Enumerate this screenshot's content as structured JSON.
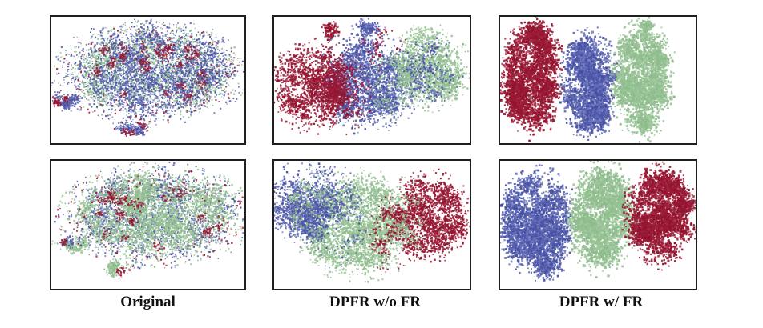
{
  "figure": {
    "type": "t-SNE class-separation comparison, 2 rows x 3 columns",
    "columns": [
      {
        "label": "Original"
      },
      {
        "label": "DPFR w/o FR"
      },
      {
        "label": "DPFR w/ FR"
      }
    ]
  },
  "frame": {
    "border_color": "#1f1f1f",
    "background": "#ffffff"
  },
  "palette": {
    "red": {
      "base": "#93122e",
      "light": "#c4556d",
      "light_mix": 0.35
    },
    "blue": {
      "base": "#444ea3",
      "light": "#9aa1d6",
      "light_mix": 0.7
    },
    "green": {
      "base": "#8cbb8a",
      "light": "#c3ddc0",
      "light_mix": 0.5
    }
  },
  "chart_data": [
    {
      "type": "scatter",
      "label": "Original",
      "row": 0,
      "col": 0,
      "seed": 11,
      "axes": "hidden (t-SNE embedding, no ticks)",
      "classes": [
        "red",
        "blue",
        "green"
      ],
      "description": "Single large elliptical blob, all three classes fully mixed (blue dominant, green interleaved, red in small clumps); two small satellite clusters lower-left and bottom-center.",
      "clusters": [
        {
          "class": "green",
          "n": 2600,
          "center": [
            0.52,
            0.44
          ],
          "rx": 0.38,
          "ry": 0.3,
          "clumps": 110,
          "clumpR": 0.055,
          "size": 1.6,
          "stray": 0.1
        },
        {
          "class": "blue",
          "n": 3400,
          "center": [
            0.52,
            0.44
          ],
          "rx": 0.39,
          "ry": 0.31,
          "clumps": 120,
          "clumpR": 0.05,
          "size": 1.6,
          "stray": 0.1
        },
        {
          "class": "red",
          "n": 650,
          "center": [
            0.51,
            0.45
          ],
          "rx": 0.36,
          "ry": 0.29,
          "clumps": 26,
          "clumpR": 0.022,
          "size": 1.7,
          "stray": 0.25
        },
        {
          "class": "blue",
          "n": 230,
          "center": [
            0.075,
            0.66
          ],
          "rx": 0.055,
          "ry": 0.048,
          "clumps": 6,
          "clumpR": 0.02,
          "size": 1.6,
          "stray": 0.05
        },
        {
          "class": "red",
          "n": 70,
          "center": [
            0.045,
            0.66
          ],
          "rx": 0.03,
          "ry": 0.04,
          "clumps": 3,
          "clumpR": 0.015,
          "size": 1.7,
          "stray": 0.1
        },
        {
          "class": "blue",
          "n": 210,
          "center": [
            0.44,
            0.86
          ],
          "rx": 0.09,
          "ry": 0.05,
          "clumps": 6,
          "clumpR": 0.022,
          "size": 1.6,
          "stray": 0.08
        },
        {
          "class": "red",
          "n": 60,
          "center": [
            0.42,
            0.88
          ],
          "rx": 0.07,
          "ry": 0.04,
          "clumps": 3,
          "clumpR": 0.015,
          "size": 1.7,
          "stray": 0.1
        }
      ]
    },
    {
      "type": "scatter",
      "label": "DPFR w/o FR",
      "row": 0,
      "col": 1,
      "seed": 22,
      "axes": "hidden (t-SNE embedding, no ticks)",
      "classes": [
        "red",
        "blue",
        "green"
      ],
      "description": "One connected blob with partial separation: red left, blue center, green right; boundaries mixed; small red and blue clumps above the main mass.",
      "clusters": [
        {
          "class": "blue",
          "n": 2600,
          "center": [
            0.48,
            0.5
          ],
          "rx": 0.21,
          "ry": 0.32,
          "clumps": 80,
          "clumpR": 0.045,
          "size": 1.9,
          "stray": 0.07
        },
        {
          "class": "green",
          "n": 1700,
          "center": [
            0.8,
            0.4
          ],
          "rx": 0.16,
          "ry": 0.26,
          "clumps": 55,
          "clumpR": 0.04,
          "size": 1.9,
          "stray": 0.06
        },
        {
          "class": "blue",
          "n": 330,
          "center": [
            0.78,
            0.44
          ],
          "rx": 0.14,
          "ry": 0.22,
          "clumps": 30,
          "clumpR": 0.03,
          "size": 1.8,
          "stray": 0.1
        },
        {
          "class": "green",
          "n": 220,
          "center": [
            0.6,
            0.52
          ],
          "rx": 0.1,
          "ry": 0.24,
          "clumps": 20,
          "clumpR": 0.03,
          "size": 1.7,
          "stray": 0.1
        },
        {
          "class": "red",
          "n": 2000,
          "center": [
            0.2,
            0.55
          ],
          "rx": 0.17,
          "ry": 0.28,
          "clumps": 55,
          "clumpR": 0.04,
          "size": 1.9,
          "stray": 0.08
        },
        {
          "class": "red",
          "n": 300,
          "center": [
            0.37,
            0.62
          ],
          "rx": 0.1,
          "ry": 0.24,
          "clumps": 22,
          "clumpR": 0.025,
          "size": 1.8,
          "stray": 0.15
        },
        {
          "class": "red",
          "n": 130,
          "center": [
            0.295,
            0.12
          ],
          "rx": 0.035,
          "ry": 0.05,
          "clumps": 4,
          "clumpR": 0.02,
          "size": 1.9,
          "stray": 0.05
        },
        {
          "class": "blue",
          "n": 170,
          "center": [
            0.46,
            0.1
          ],
          "rx": 0.055,
          "ry": 0.045,
          "clumps": 5,
          "clumpR": 0.02,
          "size": 1.8,
          "stray": 0.08
        },
        {
          "class": "red",
          "n": 90,
          "center": [
            0.52,
            0.25
          ],
          "rx": 0.12,
          "ry": 0.15,
          "clumps": 10,
          "clumpR": 0.015,
          "size": 1.7,
          "stray": 0.2
        }
      ]
    },
    {
      "type": "scatter",
      "label": "DPFR w/ FR",
      "row": 0,
      "col": 2,
      "seed": 33,
      "axes": "hidden (t-SNE embedding, no ticks)",
      "classes": [
        "red",
        "blue",
        "green"
      ],
      "description": "Three fully separated tall clusters: red left, blue middle, green right; green has a small nub on top.",
      "clusters": [
        {
          "class": "red",
          "n": 3000,
          "center": [
            0.165,
            0.47
          ],
          "rx": 0.125,
          "ry": 0.38,
          "clumps": 70,
          "clumpR": 0.038,
          "size": 2.2,
          "stray": 0.05
        },
        {
          "class": "red",
          "n": 250,
          "center": [
            0.07,
            0.62
          ],
          "rx": 0.05,
          "ry": 0.1,
          "clumps": 8,
          "clumpR": 0.03,
          "size": 2.2,
          "stray": 0.08
        },
        {
          "class": "blue",
          "n": 2900,
          "center": [
            0.455,
            0.54
          ],
          "rx": 0.115,
          "ry": 0.345,
          "clumps": 70,
          "clumpR": 0.038,
          "size": 2.2,
          "stray": 0.05
        },
        {
          "class": "green",
          "n": 2900,
          "center": [
            0.73,
            0.5
          ],
          "rx": 0.12,
          "ry": 0.37,
          "clumps": 70,
          "clumpR": 0.038,
          "size": 2.2,
          "stray": 0.05
        },
        {
          "class": "green",
          "n": 140,
          "center": [
            0.74,
            0.105
          ],
          "rx": 0.035,
          "ry": 0.05,
          "clumps": 4,
          "clumpR": 0.02,
          "size": 2.2,
          "stray": 0.05
        }
      ]
    },
    {
      "type": "scatter",
      "label": "Original",
      "row": 1,
      "col": 0,
      "seed": 44,
      "axes": "hidden (t-SNE embedding, no ticks)",
      "classes": [
        "red",
        "blue",
        "green"
      ],
      "description": "Single large elliptical blob, classes fully mixed (green dominant, blue interleaved, red speckles); satellite clusters at left and bottom.",
      "clusters": [
        {
          "class": "blue",
          "n": 2200,
          "center": [
            0.54,
            0.43
          ],
          "rx": 0.39,
          "ry": 0.31,
          "clumps": 110,
          "clumpR": 0.05,
          "size": 1.6,
          "stray": 0.1
        },
        {
          "class": "green",
          "n": 3400,
          "center": [
            0.54,
            0.43
          ],
          "rx": 0.38,
          "ry": 0.3,
          "clumps": 110,
          "clumpR": 0.05,
          "size": 1.8,
          "stray": 0.08
        },
        {
          "class": "red",
          "n": 520,
          "center": [
            0.53,
            0.44
          ],
          "rx": 0.37,
          "ry": 0.29,
          "clumps": 22,
          "clumpR": 0.02,
          "size": 1.7,
          "stray": 0.3
        },
        {
          "class": "green",
          "n": 230,
          "center": [
            0.1,
            0.64
          ],
          "rx": 0.08,
          "ry": 0.05,
          "clumps": 7,
          "clumpR": 0.02,
          "size": 1.7,
          "stray": 0.08
        },
        {
          "class": "blue",
          "n": 70,
          "center": [
            0.12,
            0.63
          ],
          "rx": 0.06,
          "ry": 0.04,
          "clumps": 4,
          "clumpR": 0.015,
          "size": 1.6,
          "stray": 0.1
        },
        {
          "class": "red",
          "n": 25,
          "center": [
            0.055,
            0.62
          ],
          "rx": 0.02,
          "ry": 0.03,
          "clumps": 2,
          "clumpR": 0.01,
          "size": 1.7,
          "stray": 0.1
        },
        {
          "class": "green",
          "n": 170,
          "center": [
            0.34,
            0.84
          ],
          "rx": 0.055,
          "ry": 0.05,
          "clumps": 5,
          "clumpR": 0.02,
          "size": 1.7,
          "stray": 0.08
        },
        {
          "class": "red",
          "n": 30,
          "center": [
            0.37,
            0.87
          ],
          "rx": 0.04,
          "ry": 0.03,
          "clumps": 3,
          "clumpR": 0.01,
          "size": 1.7,
          "stray": 0.15
        }
      ]
    },
    {
      "type": "scatter",
      "label": "DPFR w/o FR",
      "row": 1,
      "col": 1,
      "seed": 55,
      "axes": "hidden (t-SNE embedding, no ticks)",
      "classes": [
        "red",
        "blue",
        "green"
      ],
      "description": "One connected blob with partial separation: blue upper-left, green center, red right with ragged clumps; boundaries mixed.",
      "clusters": [
        {
          "class": "green",
          "n": 2900,
          "center": [
            0.43,
            0.5
          ],
          "rx": 0.25,
          "ry": 0.34,
          "clumps": 85,
          "clumpR": 0.045,
          "size": 1.9,
          "stray": 0.06
        },
        {
          "class": "blue",
          "n": 1500,
          "center": [
            0.17,
            0.33
          ],
          "rx": 0.15,
          "ry": 0.26,
          "clumps": 45,
          "clumpR": 0.04,
          "size": 1.9,
          "stray": 0.08
        },
        {
          "class": "blue",
          "n": 350,
          "center": [
            0.33,
            0.45
          ],
          "rx": 0.12,
          "ry": 0.3,
          "clumps": 30,
          "clumpR": 0.025,
          "size": 1.7,
          "stray": 0.15
        },
        {
          "class": "green",
          "n": 300,
          "center": [
            0.2,
            0.35
          ],
          "rx": 0.12,
          "ry": 0.22,
          "clumps": 25,
          "clumpR": 0.025,
          "size": 1.7,
          "stray": 0.1
        },
        {
          "class": "red",
          "n": 1900,
          "center": [
            0.79,
            0.44
          ],
          "rx": 0.17,
          "ry": 0.28,
          "clumps": 50,
          "clumpR": 0.04,
          "size": 1.9,
          "stray": 0.08
        },
        {
          "class": "red",
          "n": 280,
          "center": [
            0.6,
            0.58
          ],
          "rx": 0.1,
          "ry": 0.22,
          "clumps": 20,
          "clumpR": 0.022,
          "size": 1.8,
          "stray": 0.15
        },
        {
          "class": "green",
          "n": 250,
          "center": [
            0.68,
            0.45
          ],
          "rx": 0.09,
          "ry": 0.24,
          "clumps": 20,
          "clumpR": 0.025,
          "size": 1.7,
          "stray": 0.1
        }
      ]
    },
    {
      "type": "scatter",
      "label": "DPFR w/ FR",
      "row": 1,
      "col": 2,
      "seed": 66,
      "axes": "hidden (t-SNE embedding, no ticks)",
      "classes": [
        "red",
        "blue",
        "green"
      ],
      "description": "Three fully separated round clusters: blue left (with small bottom tail), green middle, red right (with small right-side arm).",
      "clusters": [
        {
          "class": "blue",
          "n": 3100,
          "center": [
            0.195,
            0.48
          ],
          "rx": 0.155,
          "ry": 0.34,
          "clumps": 75,
          "clumpR": 0.04,
          "size": 2.2,
          "stray": 0.06
        },
        {
          "class": "blue",
          "n": 200,
          "center": [
            0.26,
            0.85
          ],
          "rx": 0.05,
          "ry": 0.06,
          "clumps": 6,
          "clumpR": 0.025,
          "size": 2.0,
          "stray": 0.1
        },
        {
          "class": "green",
          "n": 3000,
          "center": [
            0.52,
            0.44
          ],
          "rx": 0.135,
          "ry": 0.35,
          "clumps": 70,
          "clumpR": 0.04,
          "size": 2.2,
          "stray": 0.05
        },
        {
          "class": "red",
          "n": 3000,
          "center": [
            0.81,
            0.43
          ],
          "rx": 0.14,
          "ry": 0.31,
          "clumps": 65,
          "clumpR": 0.04,
          "size": 2.2,
          "stray": 0.06
        },
        {
          "class": "red",
          "n": 180,
          "center": [
            0.945,
            0.32
          ],
          "rx": 0.04,
          "ry": 0.08,
          "clumps": 6,
          "clumpR": 0.025,
          "size": 2.2,
          "stray": 0.08
        }
      ]
    }
  ]
}
